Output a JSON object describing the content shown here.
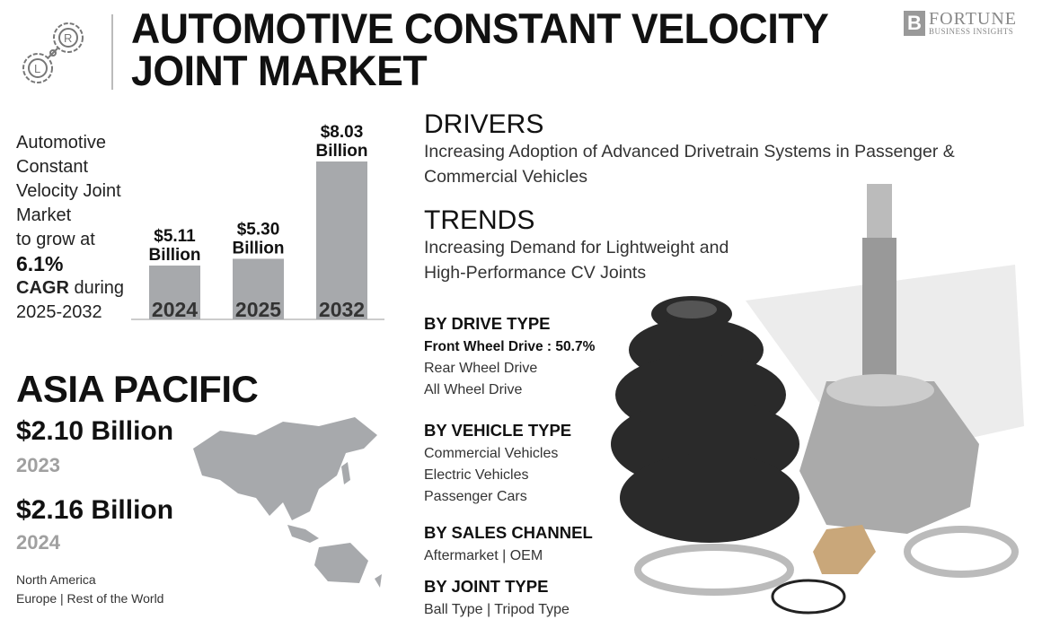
{
  "header": {
    "title_line1": "AUTOMOTIVE CONSTANT VELOCITY",
    "title_line2": "JOINT MARKET",
    "logo_name": "FORTUNE",
    "logo_tagline": "BUSINESS INSIGHTS",
    "icon": "gear-chain-icon"
  },
  "intro": {
    "line1": "Automotive",
    "line2": "Constant",
    "line3": "Velocity Joint",
    "line4": "Market",
    "line5": "to grow at",
    "cagr": "6.1%",
    "cagr_label": "CAGR",
    "during": " during",
    "period": "2025-2032"
  },
  "chart_data": {
    "type": "bar",
    "categories": [
      "2024",
      "2025",
      "2032"
    ],
    "values": [
      5.11,
      5.3,
      8.03
    ],
    "data_labels": [
      [
        "$5.11",
        "Billion"
      ],
      [
        "$5.30",
        "Billion"
      ],
      [
        "$8.03",
        "Billion"
      ]
    ],
    "unit": "USD Billion",
    "bar_color": "#a7a9ac",
    "grid": false
  },
  "region": {
    "name": "ASIA PACIFIC",
    "value1": "$2.10 Billion",
    "year1": "2023",
    "value2": "$2.16 Billion",
    "year2": "2024",
    "others_line1": "North America",
    "others_line2": "Europe  |  Rest of the World",
    "map_color": "#a7a9ac"
  },
  "drivers": {
    "heading": "DRIVERS",
    "text": "Increasing Adoption of Advanced Drivetrain Systems in Passenger & Commercial Vehicles"
  },
  "trends": {
    "heading": "TRENDS",
    "line1": "Increasing Demand for Lightweight and",
    "line2": "High-Performance CV Joints"
  },
  "segments": [
    {
      "heading": "BY DRIVE TYPE",
      "highlight": "Front Wheel Drive : 50.7%",
      "items": [
        "Rear Wheel Drive",
        "All Wheel Drive"
      ]
    },
    {
      "heading": "BY VEHICLE TYPE",
      "items": [
        "Commercial Vehicles",
        "Electric Vehicles",
        "Passenger Cars"
      ]
    },
    {
      "heading": "BY SALES CHANNEL",
      "items": [
        "Aftermarket  |  OEM"
      ]
    },
    {
      "heading": "BY JOINT TYPE",
      "items": [
        "Ball Type  |  Tripod Type"
      ]
    }
  ]
}
